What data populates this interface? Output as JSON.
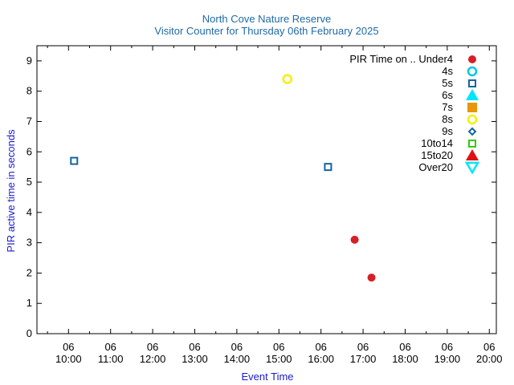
{
  "chart_data": {
    "type": "scatter",
    "title": "North Cove Nature Reserve",
    "subtitle": "Visitor Counter for Thursday 06th February 2025",
    "xlabel": "Event Time",
    "ylabel": "PIR active time in seconds",
    "xlim": [
      "06 09:15",
      "06 20:10"
    ],
    "ylim": [
      0,
      9.5
    ],
    "x_ticks": [
      {
        "day": "06",
        "time": "10:00"
      },
      {
        "day": "06",
        "time": "11:00"
      },
      {
        "day": "06",
        "time": "12:00"
      },
      {
        "day": "06",
        "time": "13:00"
      },
      {
        "day": "06",
        "time": "14:00"
      },
      {
        "day": "06",
        "time": "15:00"
      },
      {
        "day": "06",
        "time": "16:00"
      },
      {
        "day": "06",
        "time": "17:00"
      },
      {
        "day": "06",
        "time": "18:00"
      },
      {
        "day": "06",
        "time": "19:00"
      },
      {
        "day": "06",
        "time": "20:00"
      }
    ],
    "y_ticks": [
      "0",
      "1",
      "2",
      "3",
      "4",
      "5",
      "6",
      "7",
      "8",
      "9"
    ],
    "grid": false,
    "legend_position": "top-right",
    "legend_title": "PIR Time on ..",
    "series": [
      {
        "name": "Under4",
        "marker": "filled-circle",
        "color": "#d62027",
        "points": [
          {
            "x": "06 16:48",
            "y": 3.1
          },
          {
            "x": "06 17:12",
            "y": 1.85
          }
        ]
      },
      {
        "name": "4s",
        "marker": "open-circle",
        "color": "#00c8e0",
        "points": []
      },
      {
        "name": "5s",
        "marker": "open-square",
        "color": "#1464a0",
        "points": [
          {
            "x": "06 10:08",
            "y": 5.7
          },
          {
            "x": "06 16:10",
            "y": 5.5
          }
        ]
      },
      {
        "name": "6s",
        "marker": "filled-triangle-up",
        "color": "#00e5ff",
        "points": []
      },
      {
        "name": "7s",
        "marker": "filled-square",
        "color": "#e8960c",
        "points": []
      },
      {
        "name": "8s",
        "marker": "open-circle",
        "color": "#f5f000",
        "points": [
          {
            "x": "06 15:12",
            "y": 8.4
          }
        ]
      },
      {
        "name": "9s",
        "marker": "open-diamond",
        "color": "#1464a0",
        "points": []
      },
      {
        "name": "10to14",
        "marker": "open-square",
        "color": "#33cc00",
        "points": []
      },
      {
        "name": "15to20",
        "marker": "filled-triangle-up",
        "color": "#e01010",
        "points": []
      },
      {
        "name": "Over20",
        "marker": "open-triangle-down",
        "color": "#00e5ff",
        "points": []
      }
    ]
  }
}
